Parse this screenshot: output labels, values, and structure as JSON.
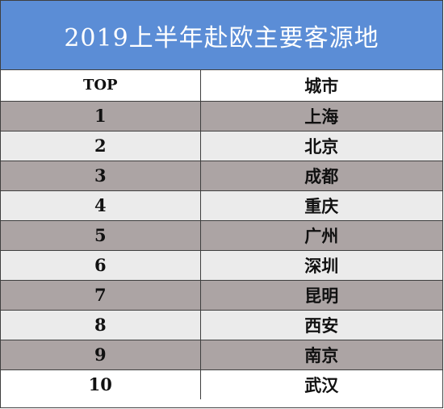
{
  "title": "2019上半年赴欧主要客源地",
  "table": {
    "headers": {
      "rank": "TOP",
      "city": "城市"
    },
    "rows": [
      {
        "rank": "1",
        "city": "上海"
      },
      {
        "rank": "2",
        "city": "北京"
      },
      {
        "rank": "3",
        "city": "成都"
      },
      {
        "rank": "4",
        "city": "重庆"
      },
      {
        "rank": "5",
        "city": "广州"
      },
      {
        "rank": "6",
        "city": "深圳"
      },
      {
        "rank": "7",
        "city": "昆明"
      },
      {
        "rank": "8",
        "city": "西安"
      },
      {
        "rank": "9",
        "city": "南京"
      },
      {
        "rank": "10",
        "city": "武汉"
      }
    ]
  },
  "colors": {
    "title_background": "#5b8dd6",
    "title_text": "#ffffff",
    "row_dark": "#aca4a4",
    "row_light": "#ebebeb",
    "border": "#3f3f3f"
  }
}
